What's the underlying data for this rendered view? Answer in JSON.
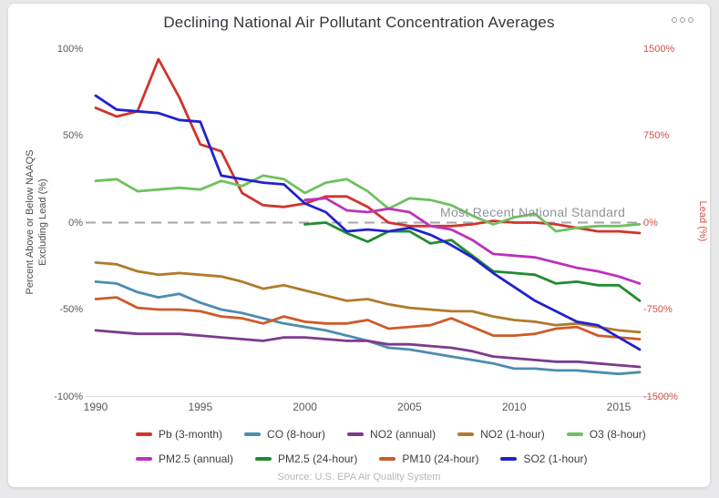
{
  "header": {
    "menu_icon": "ellipsis-menu"
  },
  "chart_data": {
    "type": "line",
    "title": "Declining National Air Pollutant Concentration Averages",
    "source": "Source: U.S. EPA Air Quality System",
    "x": [
      1990,
      1991,
      1992,
      1993,
      1994,
      1995,
      1996,
      1997,
      1998,
      1999,
      2000,
      2001,
      2002,
      2003,
      2004,
      2005,
      2006,
      2007,
      2008,
      2009,
      2010,
      2011,
      2012,
      2013,
      2014,
      2015,
      2016
    ],
    "x_ticks": [
      1990,
      1995,
      2000,
      2005,
      2010,
      2015
    ],
    "left_axis": {
      "title_line1": "Percent Above or Below NAAQS",
      "title_line2": "Excluding Lead (%)",
      "tick_labels": [
        "100%",
        "50%",
        "0%",
        "-50%",
        "-100%"
      ],
      "tick_values": [
        100,
        50,
        0,
        -50,
        -100
      ],
      "range": [
        -100,
        100
      ]
    },
    "right_axis": {
      "title": "Lead (%)",
      "tick_labels": [
        "1500%",
        "750%",
        "0%",
        "-750%",
        "-1500%"
      ],
      "tick_values": [
        1500,
        750,
        0,
        -750,
        -1500
      ],
      "range": [
        -1500,
        1500
      ]
    },
    "reference_line": {
      "value": 0,
      "label": "Most Recent National Standard",
      "style": "dashed",
      "color": "#a6a6a6"
    },
    "grid": "off",
    "legend_position": "bottom",
    "legend_row_break": 5,
    "series": [
      {
        "name": "Pb (3-month)",
        "color": "#d0342c",
        "axis": "right",
        "start_year": 1990,
        "values": [
          990,
          915,
          960,
          1410,
          1080,
          675,
          615,
          255,
          150,
          135,
          165,
          225,
          225,
          135,
          0,
          -30,
          -30,
          -30,
          -15,
          15,
          0,
          0,
          -15,
          -45,
          -75,
          -75,
          -90
        ]
      },
      {
        "name": "CO (8-hour)",
        "color": "#4d8cb0",
        "axis": "left",
        "start_year": 1990,
        "values": [
          -34,
          -35,
          -40,
          -43,
          -41,
          -46,
          -50,
          -52,
          -55,
          -58,
          -60,
          -62,
          -65,
          -68,
          -72,
          -73,
          -75,
          -77,
          -79,
          -81,
          -84,
          -84,
          -85,
          -85,
          -86,
          -87,
          -86
        ]
      },
      {
        "name": "NO2 (annual)",
        "color": "#7e3a8c",
        "axis": "left",
        "start_year": 1990,
        "values": [
          -62,
          -63,
          -64,
          -64,
          -64,
          -65,
          -66,
          -67,
          -68,
          -66,
          -66,
          -67,
          -68,
          -68,
          -70,
          -70,
          -71,
          -72,
          -74,
          -77,
          -78,
          -79,
          -80,
          -80,
          -81,
          -82,
          -83
        ]
      },
      {
        "name": "NO2 (1-hour)",
        "color": "#b07b2a",
        "axis": "left",
        "start_year": 1990,
        "values": [
          -23,
          -24,
          -28,
          -30,
          -29,
          -30,
          -31,
          -34,
          -38,
          -36,
          -39,
          -42,
          -45,
          -44,
          -47,
          -49,
          -50,
          -51,
          -51,
          -54,
          -56,
          -57,
          -59,
          -58,
          -60,
          -62,
          -63
        ]
      },
      {
        "name": "O3 (8-hour)",
        "color": "#6fc15f",
        "axis": "left",
        "start_year": 1990,
        "values": [
          24,
          25,
          18,
          19,
          20,
          19,
          24,
          21,
          27,
          25,
          17,
          23,
          25,
          18,
          8,
          14,
          13,
          10,
          4,
          -1,
          3,
          5,
          -5,
          -3,
          -2,
          -2,
          -1
        ]
      },
      {
        "name": "PM2.5 (annual)",
        "color": "#bb33bb",
        "axis": "left",
        "start_year": 2000,
        "values": [
          13,
          14,
          7,
          6,
          8,
          6,
          -2,
          -4,
          -10,
          -18,
          -19,
          -20,
          -23,
          -26,
          -28,
          -31,
          -35
        ]
      },
      {
        "name": "PM2.5 (24-hour)",
        "color": "#1f8c2f",
        "axis": "left",
        "start_year": 2000,
        "values": [
          -1,
          0,
          -6,
          -11,
          -5,
          -5,
          -12,
          -10,
          -19,
          -28,
          -29,
          -30,
          -35,
          -34,
          -36,
          -36,
          -45
        ]
      },
      {
        "name": "PM10 (24-hour)",
        "color": "#cf5a28",
        "axis": "left",
        "start_year": 1990,
        "values": [
          -44,
          -43,
          -49,
          -50,
          -50,
          -51,
          -54,
          -55,
          -58,
          -54,
          -57,
          -58,
          -58,
          -56,
          -61,
          -60,
          -59,
          -55,
          -60,
          -65,
          -65,
          -64,
          -61,
          -60,
          -65,
          -66,
          -67
        ]
      },
      {
        "name": "SO2 (1-hour)",
        "color": "#2222cc",
        "axis": "left",
        "start_year": 1990,
        "values": [
          73,
          65,
          64,
          63,
          59,
          58,
          27,
          25,
          23,
          22,
          11,
          6,
          -5,
          -4,
          -5,
          -3,
          -7,
          -13,
          -20,
          -29,
          -37,
          -45,
          -51,
          -57,
          -59,
          -66,
          -73
        ]
      }
    ]
  }
}
